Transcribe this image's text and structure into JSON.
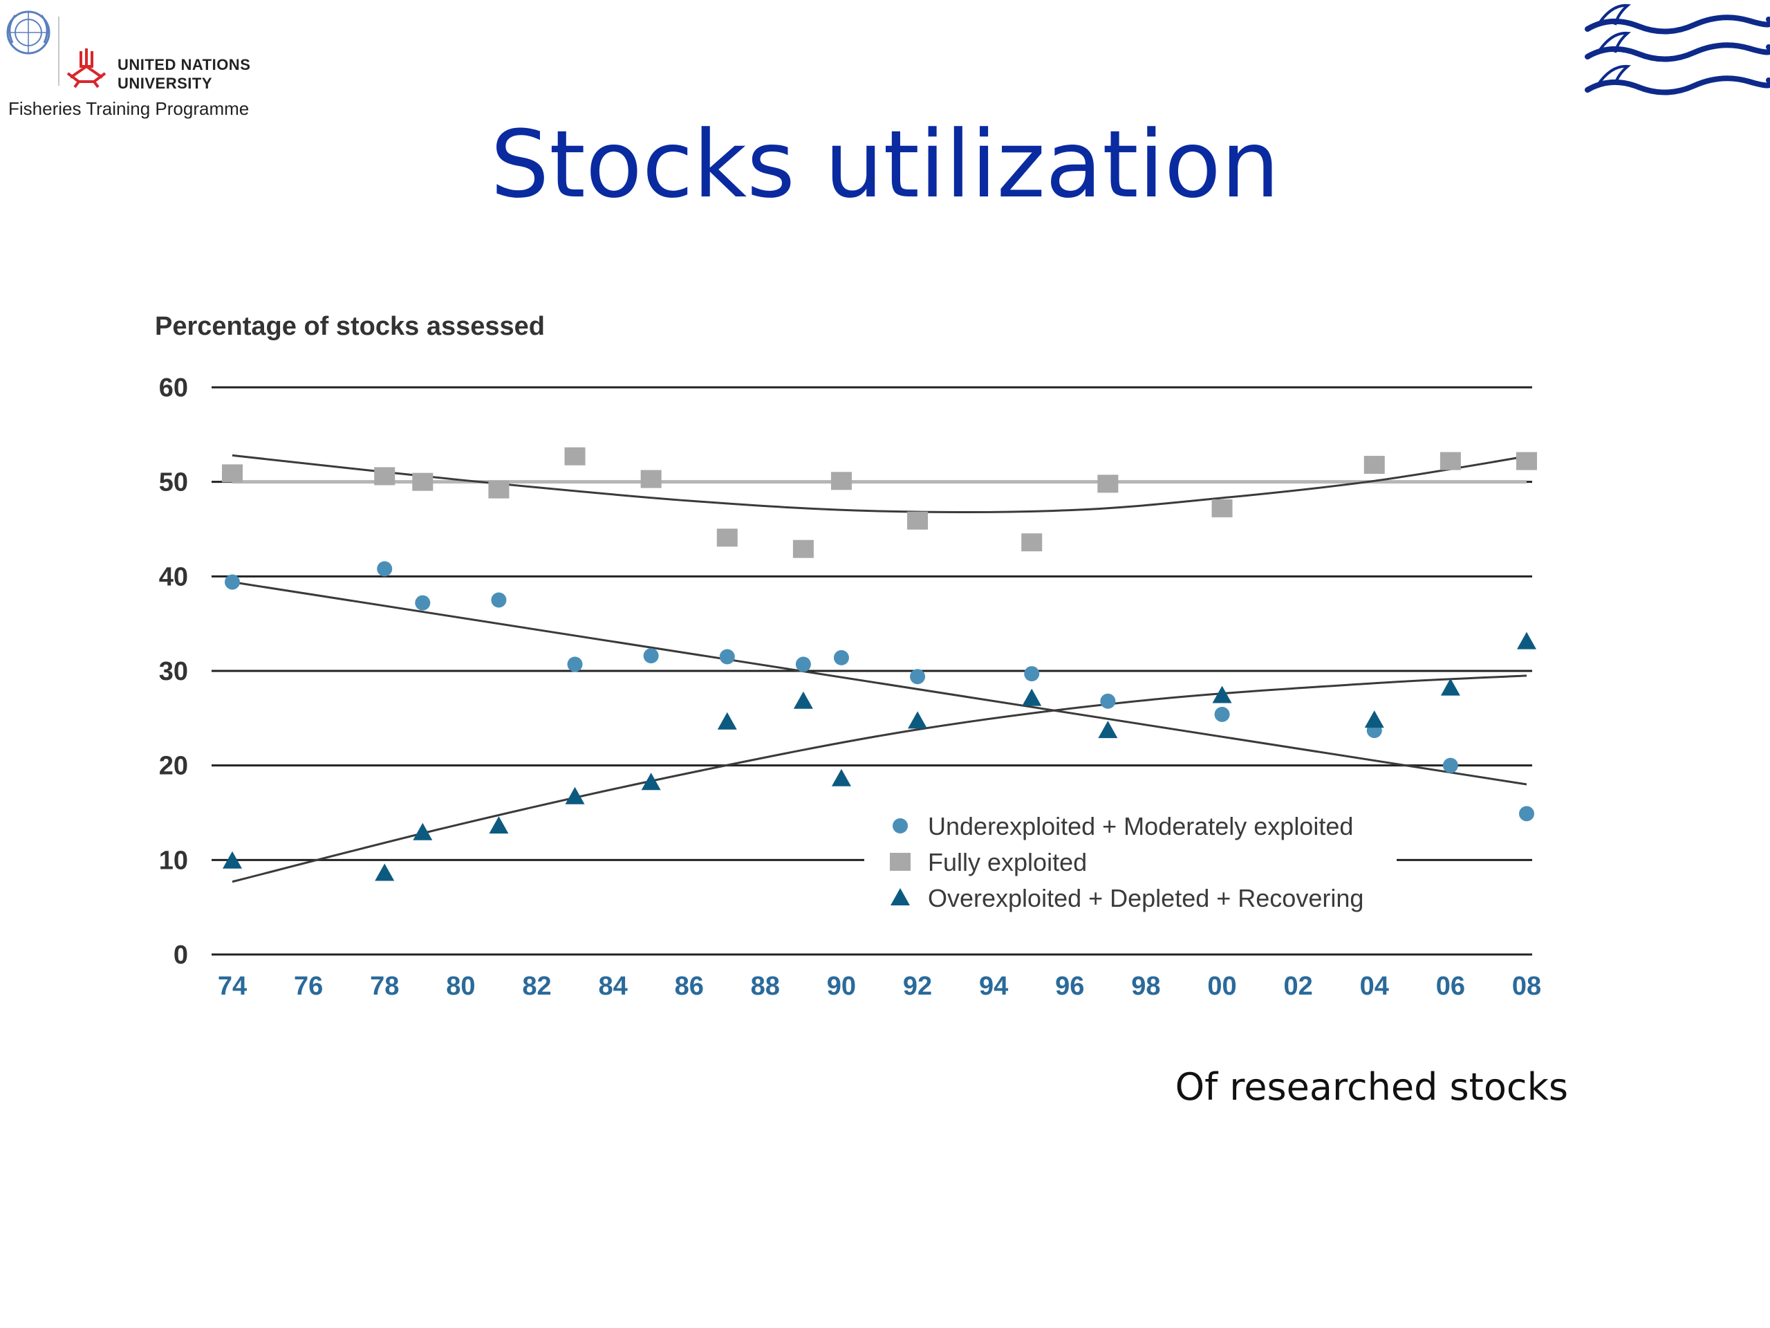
{
  "header": {
    "logo_line1": "UNITED NATIONS",
    "logo_line2": "UNIVERSITY",
    "programme": "Fisheries Training Programme",
    "left_logo_icon": "un-emblem-icon",
    "unu_logo_icon": "unu-emblem-icon",
    "right_logo_icon": "waves-logo-icon"
  },
  "slide": {
    "title": "Stocks utilization",
    "caption": "Of researched stocks"
  },
  "colors": {
    "title": "#0a2aa0",
    "series_under": "#4a8fb8",
    "series_fully": "#a8a8a8",
    "series_over": "#0d5a80",
    "tick_x": "#2a6a9a"
  },
  "chart_data": {
    "type": "scatter",
    "title": "Percentage of stocks assessed",
    "xlabel": "",
    "ylabel": "",
    "ylim": [
      0,
      60
    ],
    "xlim": [
      1974,
      2008
    ],
    "yticks": [
      "0",
      "10",
      "20",
      "30",
      "40",
      "50",
      "60"
    ],
    "xticks": [
      "74",
      "76",
      "78",
      "80",
      "82",
      "84",
      "86",
      "88",
      "90",
      "92",
      "94",
      "96",
      "98",
      "00",
      "02",
      "04",
      "06",
      "08"
    ],
    "grid": true,
    "legend_placement": "bottom-right",
    "series": [
      {
        "name": "Underexploited + Moderately exploited",
        "marker": "circle",
        "x": [
          1974,
          1978,
          1979,
          1981,
          1983,
          1985,
          1987,
          1989,
          1990,
          1992,
          1995,
          1997,
          2000,
          2004,
          2006,
          2008
        ],
        "y": [
          39.4,
          40.8,
          37.2,
          37.5,
          30.7,
          31.6,
          31.5,
          30.7,
          31.4,
          29.4,
          29.7,
          26.8,
          25.4,
          23.7,
          20.0,
          14.9
        ]
      },
      {
        "name": "Fully exploited",
        "marker": "square",
        "x": [
          1974,
          1978,
          1979,
          1981,
          1983,
          1985,
          1987,
          1989,
          1990,
          1992,
          1995,
          1997,
          2000,
          2004,
          2006,
          2008
        ],
        "y": [
          50.9,
          50.6,
          50.0,
          49.2,
          52.7,
          50.3,
          44.1,
          42.9,
          50.1,
          45.9,
          43.6,
          49.8,
          47.2,
          51.8,
          52.2,
          52.2
        ]
      },
      {
        "name": "Overexploited + Depleted + Recovering",
        "marker": "triangle",
        "x": [
          1974,
          1978,
          1979,
          1981,
          1983,
          1985,
          1987,
          1989,
          1990,
          1992,
          1995,
          1997,
          2000,
          2004,
          2006,
          2008
        ],
        "y": [
          9.9,
          8.6,
          12.9,
          13.6,
          16.7,
          18.2,
          24.6,
          26.8,
          18.6,
          24.7,
          27.1,
          23.7,
          27.4,
          24.8,
          28.2,
          33.1
        ]
      }
    ],
    "trend_lines": [
      {
        "series": "Underexploited + Moderately exploited",
        "x": [
          1974,
          2008
        ],
        "y": [
          39.4,
          18.0
        ]
      },
      {
        "series": "Fully exploited (mean)",
        "x": [
          1974,
          2008
        ],
        "y": [
          50.0,
          50.0
        ]
      },
      {
        "series": "Fully exploited (fit)",
        "x": [
          1974,
          1980,
          1986,
          1991,
          1996,
          2000,
          2004,
          2008
        ],
        "y": [
          52.8,
          50.2,
          48.0,
          46.9,
          47.0,
          48.3,
          50.1,
          52.7
        ]
      },
      {
        "series": "Overexploited + Depleted + Recovering",
        "x": [
          1974,
          1980,
          1986,
          1992,
          1998,
          2004,
          2008
        ],
        "y": [
          7.7,
          13.8,
          19.2,
          23.8,
          26.9,
          28.7,
          29.5
        ]
      }
    ]
  }
}
